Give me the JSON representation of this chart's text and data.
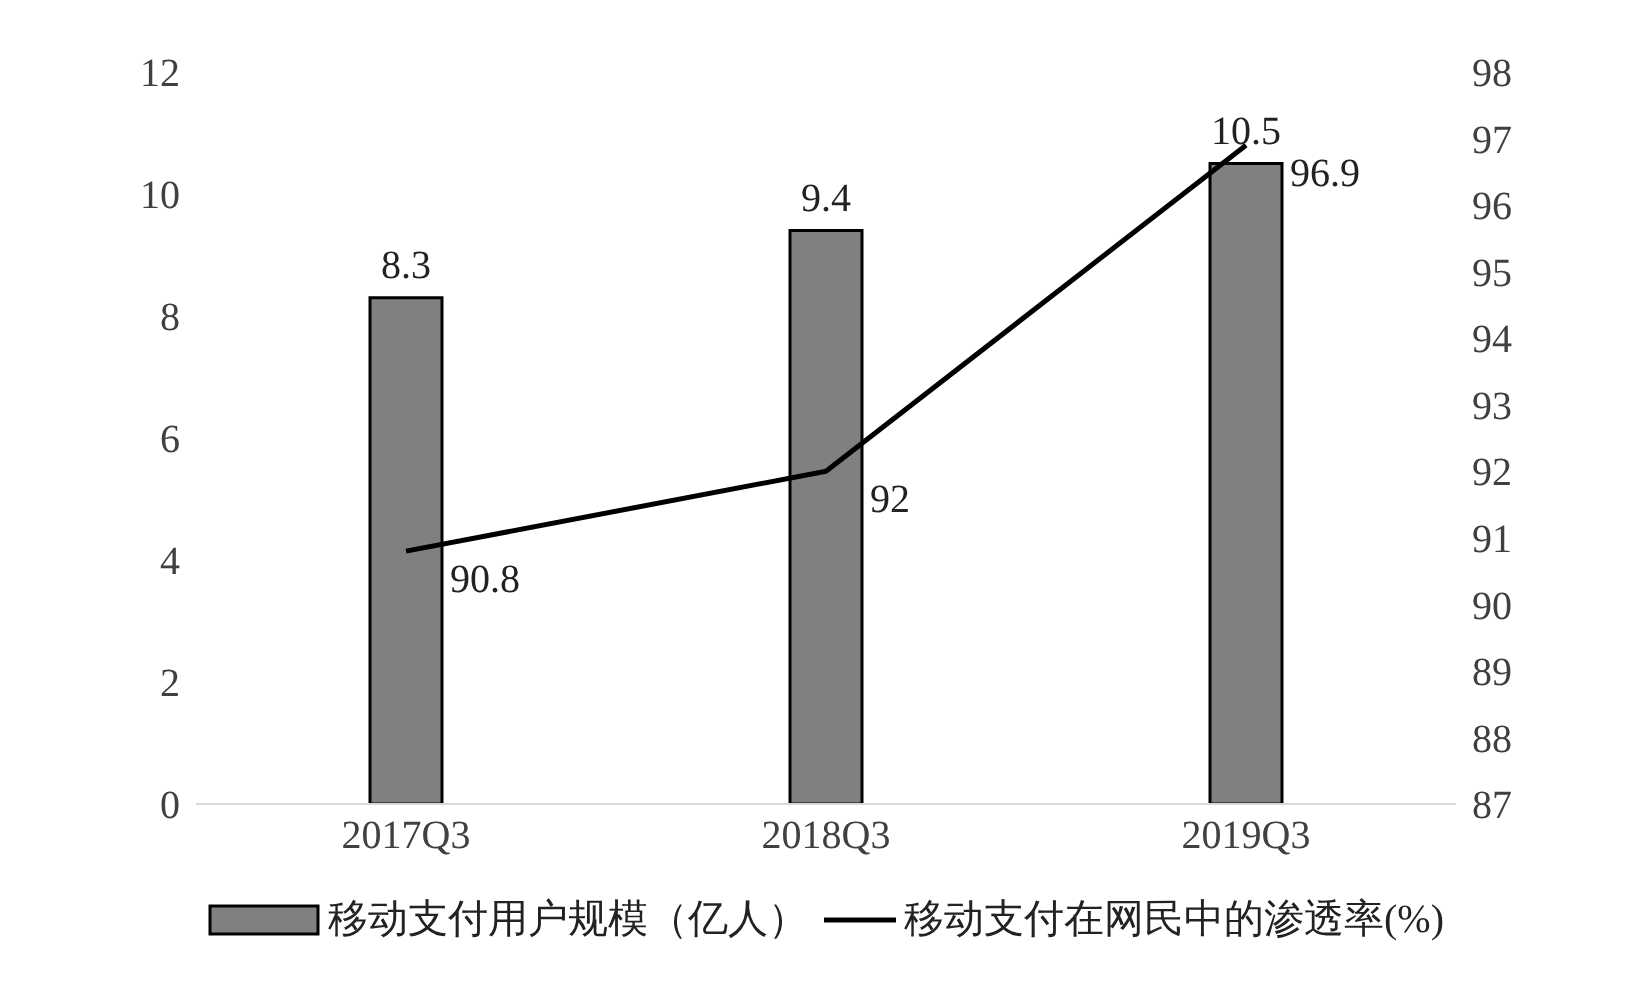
{
  "chart_data": {
    "type": "bar",
    "categories": [
      "2017Q3",
      "2018Q3",
      "2019Q3"
    ],
    "series": [
      {
        "name": "移动支付用户规模（亿人）",
        "color": "#808080",
        "values": [
          8.3,
          9.4,
          10.5
        ]
      },
      {
        "name": "移动支付在网民中的渗透率(%)",
        "type": "line",
        "axis": "y2",
        "color": "#000000",
        "values": [
          90.8,
          92,
          96.9
        ]
      }
    ],
    "ylim": [
      0,
      12
    ],
    "yticks": [
      0,
      2,
      4,
      6,
      8,
      10,
      12
    ],
    "y2lim": [
      87,
      98
    ],
    "y2ticks": [
      87,
      88,
      89,
      90,
      91,
      92,
      93,
      94,
      95,
      96,
      97,
      98
    ],
    "data_labels": true,
    "grid": false,
    "legend": "bottom",
    "marker": "none",
    "line_style": "solid"
  }
}
